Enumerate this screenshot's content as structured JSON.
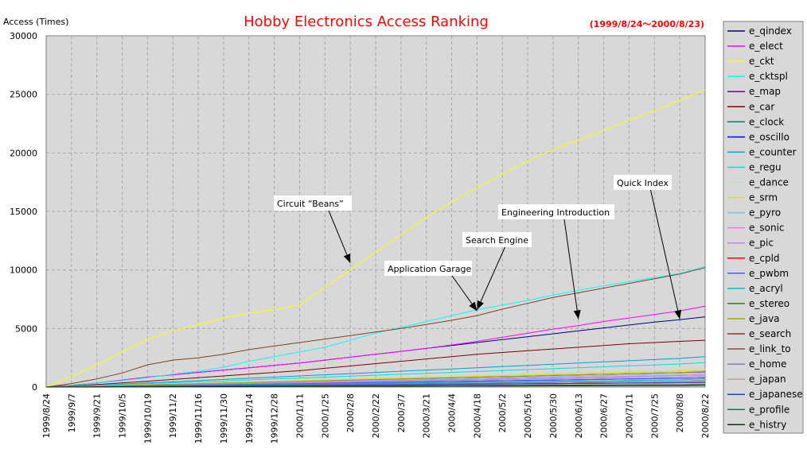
{
  "chart_data": {
    "type": "line",
    "title": "Hobby Electronics Access Ranking",
    "subtitle": "(1999/8/24～2000/8/23)",
    "ylabel": "Access (Times)",
    "xlabel": "",
    "ylim": [
      0,
      30000
    ],
    "yticks": [
      0,
      5000,
      10000,
      15000,
      20000,
      25000,
      30000
    ],
    "grid": true,
    "legend_position": "right",
    "x": [
      "1999/8/24",
      "1999/9/7",
      "1999/9/21",
      "1999/10/5",
      "1999/10/19",
      "1999/11/2",
      "1999/11/16",
      "1999/11/30",
      "1999/12/14",
      "1999/12/28",
      "2000/1/11",
      "2000/1/25",
      "2000/2/8",
      "2000/2/22",
      "2000/3/7",
      "2000/3/21",
      "2000/4/4",
      "2000/4/18",
      "2000/5/2",
      "2000/5/16",
      "2000/5/30",
      "2000/6/13",
      "2000/6/27",
      "2000/7/11",
      "2000/7/25",
      "2000/8/8",
      "2000/8/22"
    ],
    "series": [
      {
        "name": "e_qindex",
        "color": "#000080",
        "values": [
          0,
          150,
          350,
          600,
          850,
          1050,
          1250,
          1450,
          1650,
          1850,
          2050,
          2300,
          2550,
          2800,
          3050,
          3300,
          3550,
          3800,
          4050,
          4300,
          4550,
          4800,
          5050,
          5300,
          5550,
          5750,
          6000
        ]
      },
      {
        "name": "e_elect",
        "color": "#ff00ff",
        "values": [
          0,
          150,
          350,
          600,
          850,
          1050,
          1250,
          1450,
          1650,
          1850,
          2050,
          2300,
          2550,
          2800,
          3050,
          3300,
          3600,
          3900,
          4250,
          4600,
          4950,
          5250,
          5600,
          5900,
          6200,
          6500,
          6900
        ]
      },
      {
        "name": "e_ckt",
        "color": "#ffff00",
        "values": [
          0,
          900,
          1900,
          3000,
          4100,
          4800,
          5300,
          5900,
          6300,
          6600,
          7000,
          8500,
          10000,
          11500,
          13000,
          14500,
          15800,
          17000,
          18200,
          19300,
          20300,
          21100,
          21900,
          22800,
          23600,
          24500,
          25400
        ]
      },
      {
        "name": "e_cktspl",
        "color": "#00ffff",
        "values": [
          0,
          150,
          350,
          550,
          800,
          1100,
          1350,
          1700,
          2200,
          2600,
          3000,
          3400,
          4000,
          4600,
          5100,
          5600,
          6100,
          6600,
          7000,
          7400,
          7850,
          8250,
          8650,
          9000,
          9350,
          9700,
          10300
        ]
      },
      {
        "name": "e_map",
        "color": "#800080",
        "values": [
          0,
          40,
          90,
          140,
          190,
          240,
          290,
          340,
          390,
          440,
          490,
          540,
          590,
          640,
          690,
          740,
          790,
          840,
          890,
          940,
          990,
          1040,
          1090,
          1140,
          1190,
          1240,
          1300
        ]
      },
      {
        "name": "e_car",
        "color": "#800000",
        "values": [
          0,
          100,
          220,
          350,
          500,
          650,
          800,
          950,
          1100,
          1250,
          1400,
          1600,
          1800,
          2000,
          2200,
          2400,
          2600,
          2800,
          2950,
          3100,
          3250,
          3400,
          3550,
          3700,
          3800,
          3900,
          4000
        ]
      },
      {
        "name": "e_clock",
        "color": "#008080",
        "values": [
          0,
          30,
          70,
          110,
          150,
          190,
          230,
          270,
          310,
          350,
          390,
          430,
          470,
          510,
          550,
          590,
          630,
          670,
          710,
          750,
          790,
          830,
          870,
          910,
          950,
          990,
          1050
        ]
      },
      {
        "name": "e_oscillo",
        "color": "#0000ff",
        "values": [
          0,
          30,
          60,
          90,
          120,
          150,
          180,
          210,
          240,
          270,
          300,
          330,
          360,
          390,
          420,
          450,
          480,
          510,
          540,
          570,
          600,
          630,
          660,
          690,
          720,
          750,
          800
        ]
      },
      {
        "name": "e_counter",
        "color": "#00a0e0",
        "values": [
          0,
          70,
          150,
          250,
          350,
          450,
          550,
          650,
          750,
          850,
          950,
          1050,
          1150,
          1250,
          1350,
          1450,
          1550,
          1650,
          1750,
          1850,
          1950,
          2050,
          2150,
          2250,
          2350,
          2450,
          2600
        ]
      },
      {
        "name": "e_regu",
        "color": "#00e0e0",
        "values": [
          0,
          60,
          130,
          210,
          290,
          370,
          450,
          530,
          610,
          690,
          770,
          850,
          930,
          1010,
          1090,
          1170,
          1250,
          1330,
          1410,
          1490,
          1570,
          1650,
          1730,
          1810,
          1890,
          1970,
          2100
        ]
      },
      {
        "name": "e_dance",
        "color": "#c0e0c0",
        "values": [
          0,
          50,
          110,
          170,
          230,
          290,
          350,
          410,
          470,
          530,
          590,
          650,
          710,
          770,
          830,
          890,
          950,
          1010,
          1070,
          1130,
          1190,
          1250,
          1310,
          1370,
          1430,
          1490,
          1600
        ]
      },
      {
        "name": "e_srm",
        "color": "#e0e000",
        "values": [
          0,
          45,
          100,
          155,
          210,
          265,
          320,
          375,
          430,
          485,
          540,
          595,
          650,
          705,
          760,
          815,
          870,
          925,
          980,
          1035,
          1090,
          1145,
          1200,
          1255,
          1310,
          1365,
          1450
        ]
      },
      {
        "name": "e_pyro",
        "color": "#80c0e0",
        "values": [
          0,
          40,
          85,
          130,
          175,
          220,
          265,
          310,
          355,
          400,
          445,
          490,
          535,
          580,
          625,
          670,
          715,
          760,
          805,
          850,
          895,
          940,
          985,
          1030,
          1075,
          1120,
          1200
        ]
      },
      {
        "name": "e_sonic",
        "color": "#e080e0",
        "values": [
          0,
          35,
          75,
          115,
          155,
          195,
          235,
          275,
          315,
          355,
          395,
          435,
          475,
          515,
          555,
          595,
          635,
          675,
          715,
          755,
          795,
          835,
          875,
          915,
          955,
          995,
          1050
        ]
      },
      {
        "name": "e_pic",
        "color": "#c080ff",
        "values": [
          0,
          30,
          65,
          100,
          135,
          170,
          205,
          240,
          275,
          310,
          345,
          380,
          415,
          450,
          485,
          520,
          555,
          590,
          625,
          660,
          695,
          730,
          765,
          800,
          835,
          870,
          950
        ]
      },
      {
        "name": "e_cpld",
        "color": "#ff0000",
        "values": [
          0,
          10,
          25,
          40,
          55,
          70,
          85,
          100,
          115,
          130,
          145,
          160,
          175,
          190,
          205,
          220,
          235,
          250,
          265,
          280,
          295,
          310,
          325,
          340,
          355,
          370,
          400
        ]
      },
      {
        "name": "e_pwbm",
        "color": "#4060ff",
        "values": [
          0,
          25,
          55,
          85,
          115,
          145,
          175,
          205,
          235,
          265,
          295,
          325,
          355,
          385,
          415,
          445,
          475,
          505,
          535,
          565,
          595,
          625,
          655,
          685,
          715,
          745,
          800
        ]
      },
      {
        "name": "e_acryl",
        "color": "#00c0c0",
        "values": [
          0,
          20,
          45,
          70,
          95,
          120,
          145,
          170,
          195,
          220,
          245,
          270,
          295,
          320,
          345,
          370,
          395,
          420,
          445,
          470,
          495,
          520,
          545,
          570,
          595,
          620,
          700
        ]
      },
      {
        "name": "e_stereo",
        "color": "#208020",
        "values": [
          0,
          20,
          40,
          60,
          80,
          100,
          120,
          140,
          160,
          180,
          200,
          220,
          240,
          260,
          280,
          300,
          320,
          340,
          360,
          380,
          400,
          420,
          440,
          460,
          480,
          500,
          550
        ]
      },
      {
        "name": "e_java",
        "color": "#a0a020",
        "values": [
          0,
          45,
          95,
          145,
          195,
          245,
          295,
          345,
          395,
          445,
          495,
          545,
          595,
          645,
          695,
          745,
          795,
          845,
          895,
          945,
          995,
          1045,
          1095,
          1145,
          1195,
          1245,
          1350
        ]
      },
      {
        "name": "e_search",
        "color": "#804020",
        "values": [
          0,
          300,
          700,
          1200,
          1900,
          2300,
          2500,
          2800,
          3200,
          3500,
          3800,
          4100,
          4400,
          4700,
          5000,
          5350,
          5700,
          6100,
          6650,
          7150,
          7650,
          8050,
          8450,
          8850,
          9250,
          9650,
          10200
        ]
      },
      {
        "name": "e_link_to",
        "color": "#a04040",
        "values": [
          0,
          15,
          30,
          45,
          60,
          75,
          90,
          105,
          120,
          135,
          150,
          165,
          180,
          195,
          210,
          225,
          240,
          255,
          270,
          285,
          300,
          315,
          330,
          345,
          360,
          375,
          400
        ]
      },
      {
        "name": "e_home",
        "color": "#8080c0",
        "values": [
          0,
          15,
          35,
          55,
          75,
          95,
          115,
          135,
          155,
          175,
          195,
          215,
          235,
          255,
          275,
          295,
          315,
          335,
          355,
          375,
          395,
          415,
          435,
          455,
          475,
          495,
          530
        ]
      },
      {
        "name": "e_japan",
        "color": "#c0a0a0",
        "values": [
          0,
          10,
          20,
          30,
          40,
          50,
          60,
          70,
          80,
          90,
          100,
          110,
          120,
          130,
          140,
          150,
          160,
          170,
          180,
          190,
          200,
          210,
          220,
          230,
          240,
          250,
          270
        ]
      },
      {
        "name": "e_japanese",
        "color": "#2040c0",
        "values": [
          0,
          10,
          25,
          40,
          55,
          70,
          85,
          100,
          115,
          130,
          145,
          160,
          175,
          190,
          205,
          220,
          235,
          250,
          265,
          280,
          295,
          310,
          325,
          340,
          355,
          370,
          390
        ]
      },
      {
        "name": "e_profile",
        "color": "#207050",
        "values": [
          0,
          8,
          16,
          24,
          32,
          40,
          48,
          56,
          64,
          72,
          80,
          88,
          96,
          104,
          112,
          120,
          128,
          136,
          144,
          152,
          160,
          168,
          176,
          184,
          192,
          200,
          220
        ]
      },
      {
        "name": "e_histry",
        "color": "#103010",
        "values": [
          0,
          5,
          10,
          15,
          20,
          25,
          30,
          35,
          40,
          45,
          50,
          55,
          60,
          65,
          70,
          75,
          80,
          85,
          90,
          95,
          100,
          105,
          110,
          115,
          120,
          125,
          140
        ]
      }
    ],
    "annotations": [
      {
        "text": "Circuit “Beans”",
        "target_x": "2000/2/8",
        "target_y": 10600
      },
      {
        "text": "Application Garage",
        "target_x": "2000/4/18",
        "target_y": 6500
      },
      {
        "text": "Search Engine",
        "target_x": "2000/4/18",
        "target_y": 6600
      },
      {
        "text": "Engineering Introduction",
        "target_x": "2000/6/13",
        "target_y": 5800
      },
      {
        "text": "Quick Index",
        "target_x": "2000/8/8",
        "target_y": 5800
      }
    ],
    "colors": {
      "plot_bg": "#d8d8d8",
      "legend_bg": "#d8d8d8",
      "title": "#ff0000",
      "grid": "#a8a8a8"
    }
  }
}
